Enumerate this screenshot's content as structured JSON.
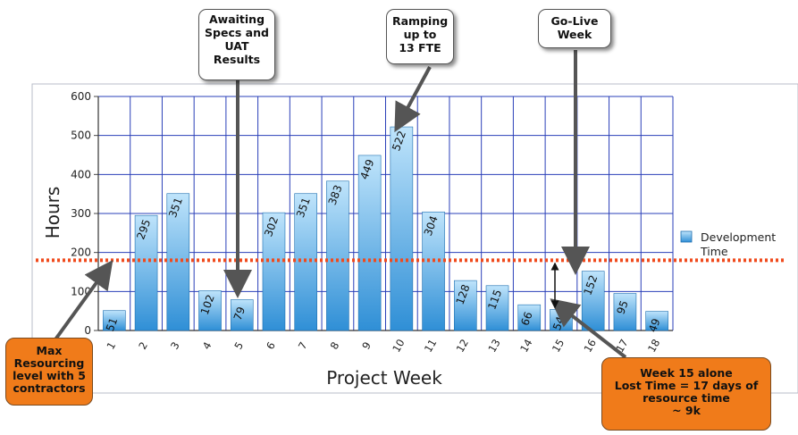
{
  "chart_data": {
    "type": "bar",
    "categories": [
      "1",
      "2",
      "3",
      "4",
      "5",
      "6",
      "7",
      "8",
      "9",
      "10",
      "11",
      "12",
      "13",
      "14",
      "15",
      "16",
      "17",
      "18"
    ],
    "series": [
      {
        "name": "Development Time",
        "values": [
          51,
          295,
          351,
          102,
          79,
          302,
          351,
          383,
          449,
          522,
          304,
          128,
          115,
          66,
          54,
          152,
          95,
          49
        ]
      }
    ],
    "data_labels": [
      "51",
      "295",
      "351",
      "102",
      "79",
      "302",
      "351",
      "383",
      "449",
      "522",
      "304",
      "128",
      "115",
      "66",
      "54",
      "152",
      "95",
      "49"
    ],
    "xlabel": "Project Week",
    "ylabel": "Hours",
    "ylim": [
      0,
      600
    ],
    "yticks": [
      0,
      100,
      200,
      300,
      400,
      500,
      600
    ],
    "ytick_labels": [
      "0",
      "100",
      "200",
      "300",
      "400",
      "500",
      "600"
    ],
    "grid": true,
    "legend": {
      "label_line1": "Development",
      "label_line2": "Time",
      "position": "right"
    },
    "reference_line": {
      "value": 180,
      "style": "dotted",
      "color": "#f04a1c"
    },
    "colors": {
      "bar_top": "#bfe4fb",
      "bar_bottom": "#2f8fd6",
      "bar_edge": "#1e6fb0",
      "grid": "#2a3fb8",
      "frame": "#b8bcc8"
    }
  },
  "annotations": {
    "awaiting": [
      "Awaiting",
      "Specs and",
      "UAT",
      "Results"
    ],
    "ramping": [
      "Ramping",
      "up to",
      "13 FTE"
    ],
    "golive": [
      "Go-Live",
      "Week"
    ],
    "max_resourcing": [
      "Max",
      "Resourcing",
      "level with 5",
      "contractors"
    ],
    "week15": [
      "Week 15 alone",
      "Lost Time = 17 days of",
      "resource time",
      "~ 9k"
    ]
  }
}
